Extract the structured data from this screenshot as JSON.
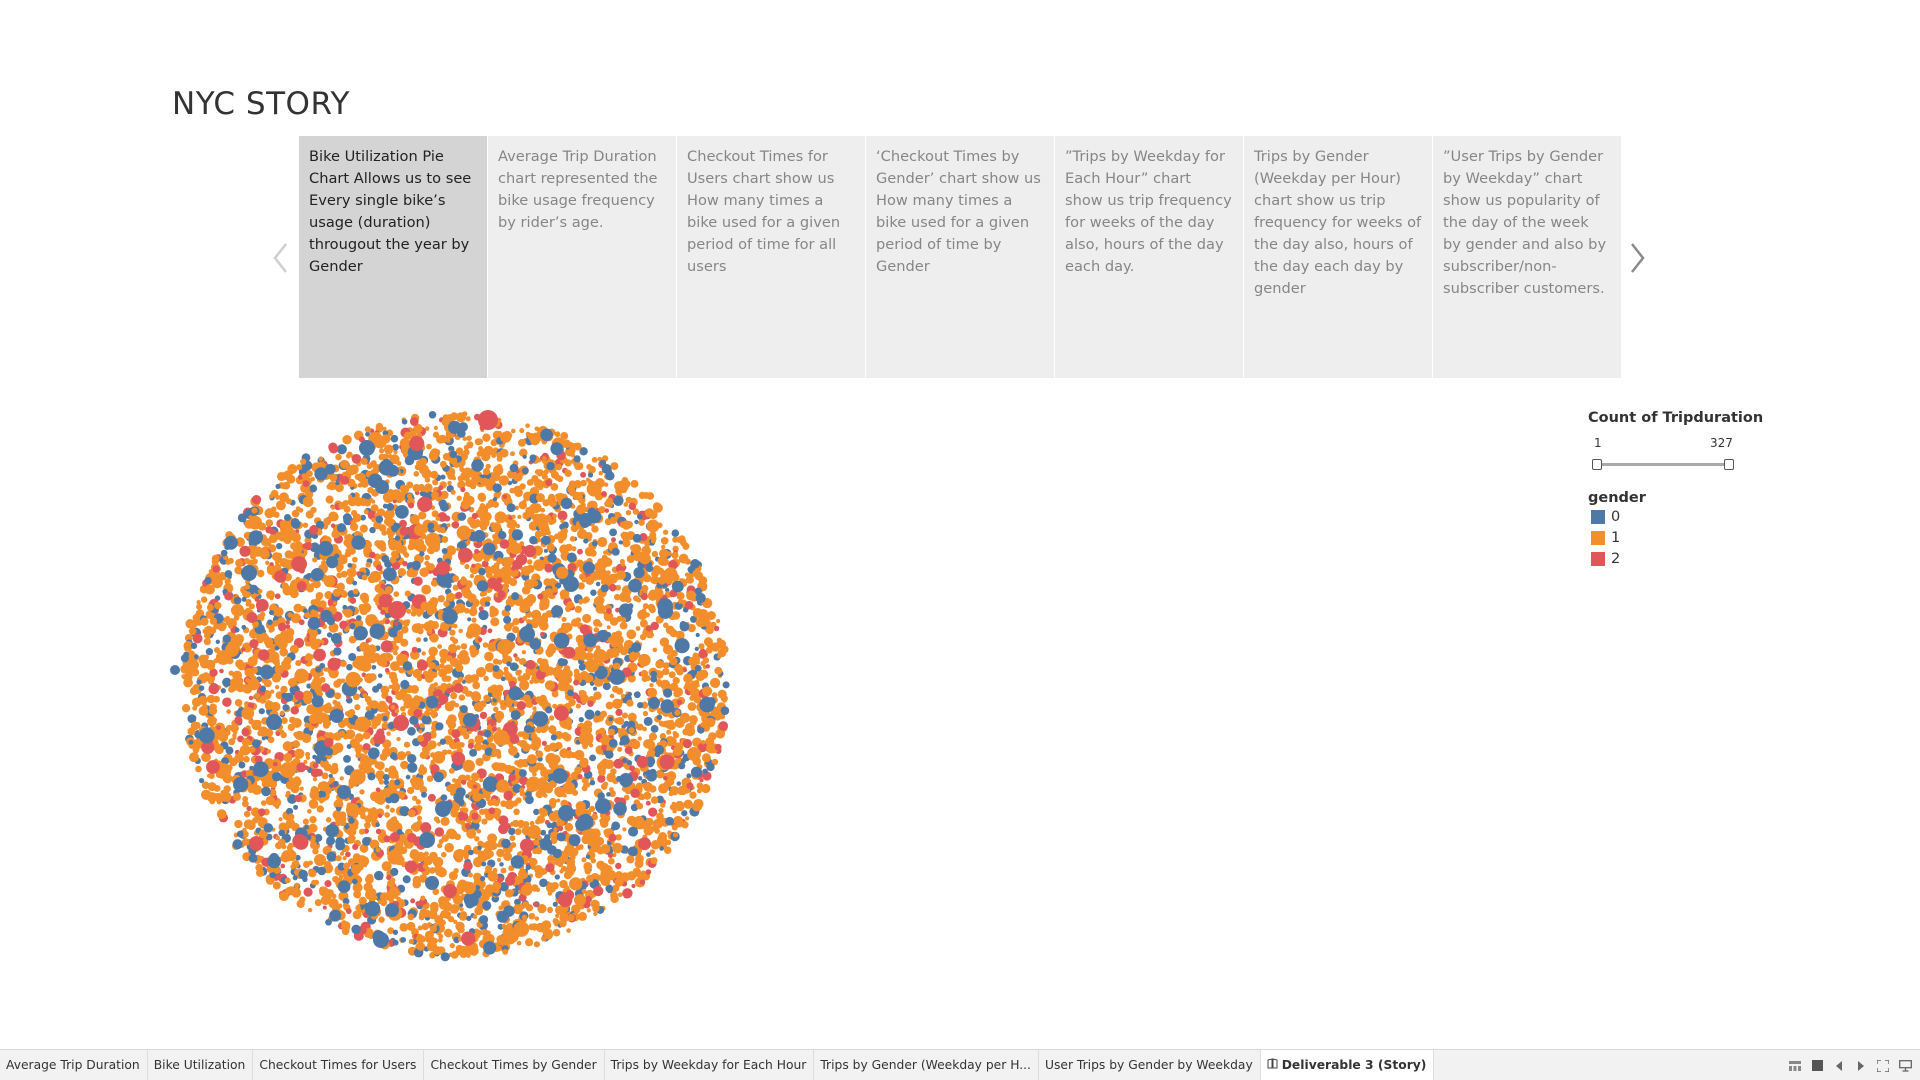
{
  "story": {
    "title": "NYC STORY"
  },
  "story_points": [
    {
      "text": "Bike Utilization Pie Chart Allows us to see Every single bike’s usage (duration) througout the year by Gender",
      "active": true
    },
    {
      "text": "Average Trip Duration chart represented the bike usage frequency by rider’s age.",
      "active": false
    },
    {
      "text": "Checkout Times for Users chart show us How many times a bike used for a given period of time for all users",
      "active": false
    },
    {
      "text": "‘Checkout Times by Gender’ chart show us How many times a bike used for a given period of time by Gender",
      "active": false
    },
    {
      "text": "”Trips by Weekday for Each Hour” chart show us trip frequency for weeks of the day also, hours of the day each day.",
      "active": false
    },
    {
      "text": "Trips by Gender (Weekday per Hour) chart show us trip frequency for weeks of the day also, hours of the day each day by gender",
      "active": false
    },
    {
      "text": "”User Trips by Gender by Weekday” chart show us popularity of the day of the week by gender and also by subscriber/non-subscriber customers.",
      "active": false
    }
  ],
  "icons": {
    "prev": "chevron-left-icon",
    "next": "chevron-right-icon",
    "story_tab": "book-icon"
  },
  "chart_data": {
    "type": "scatter",
    "description_style": "packed-bubble",
    "size_legend": {
      "title": "Count of Tripduration",
      "min": 1,
      "max": 327,
      "range": [
        1,
        327
      ]
    },
    "color_legend": {
      "title": "gender",
      "items": [
        {
          "label": "0",
          "color": "#4e79a7"
        },
        {
          "label": "1",
          "color": "#f28e2b"
        },
        {
          "label": "2",
          "color": "#e15759"
        }
      ]
    },
    "approx_share": {
      "0": 0.18,
      "1": 0.72,
      "2": 0.1
    }
  },
  "tabs": [
    {
      "label": "Average Trip Duration",
      "active": false
    },
    {
      "label": "Bike Utilization",
      "active": false
    },
    {
      "label": "Checkout Times for Users",
      "active": false
    },
    {
      "label": "Checkout Times by Gender",
      "active": false
    },
    {
      "label": "Trips by Weekday for Each Hour",
      "active": false
    },
    {
      "label": "Trips by Gender (Weekday per H...",
      "active": false
    },
    {
      "label": "User Trips by Gender by Weekday",
      "active": false
    },
    {
      "label": "Deliverable 3 (Story)",
      "active": true
    }
  ]
}
